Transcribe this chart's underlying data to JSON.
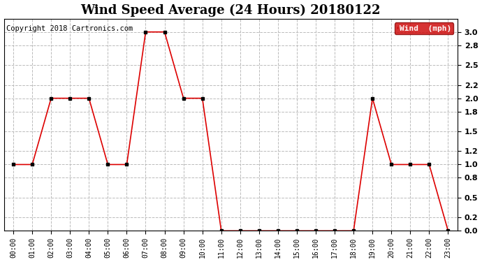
{
  "title": "Wind Speed Average (24 Hours) 20180122",
  "copyright": "Copyright 2018 Cartronics.com",
  "legend_label": "Wind  (mph)",
  "hours": [
    "00:00",
    "01:00",
    "02:00",
    "03:00",
    "04:00",
    "05:00",
    "06:00",
    "07:00",
    "08:00",
    "09:00",
    "10:00",
    "11:00",
    "12:00",
    "13:00",
    "14:00",
    "15:00",
    "16:00",
    "17:00",
    "18:00",
    "19:00",
    "20:00",
    "21:00",
    "22:00",
    "23:00"
  ],
  "wind_values": [
    1.0,
    1.0,
    2.0,
    2.0,
    2.0,
    1.0,
    1.0,
    3.0,
    3.0,
    2.0,
    2.0,
    0.0,
    0.0,
    0.0,
    0.0,
    0.0,
    0.0,
    0.0,
    0.0,
    2.0,
    1.0,
    1.0,
    1.0,
    0.0
  ],
  "line_color": "#dd0000",
  "marker_color": "#000000",
  "marker_size": 3,
  "ylim": [
    0.0,
    3.2
  ],
  "yticks": [
    0.0,
    0.2,
    0.5,
    0.8,
    1.0,
    1.2,
    1.5,
    1.8,
    2.0,
    2.2,
    2.5,
    2.8,
    3.0
  ],
  "background_color": "#ffffff",
  "plot_bg_color": "#ffffff",
  "grid_color": "#bbbbbb",
  "title_fontsize": 13,
  "copyright_fontsize": 7.5,
  "legend_bg_color": "#cc0000",
  "legend_text_color": "#ffffff"
}
